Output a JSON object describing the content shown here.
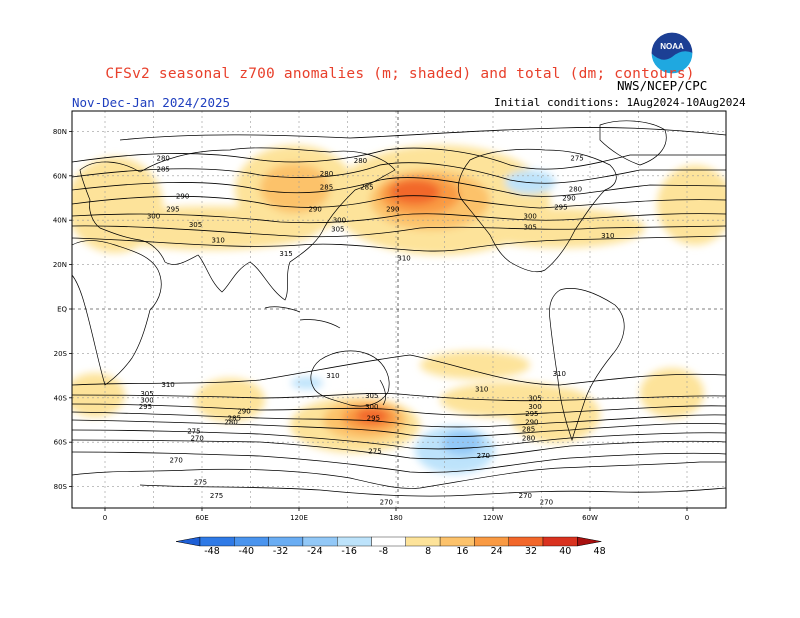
{
  "title": "CFSv2 seasonal z700 anomalies (m; shaded) and total (dm; contours)",
  "agency": "NWS/NCEP/CPC",
  "period": "Nov-Dec-Jan 2024/2025",
  "initial_conditions": "Initial conditions:  1Aug2024-10Aug2024",
  "logo_text": "NOAA",
  "lat_labels": [
    "80N",
    "60N",
    "40N",
    "20N",
    "EQ",
    "20S",
    "40S",
    "60S",
    "80S"
  ],
  "lon_labels": [
    "0",
    "60E",
    "120E",
    "180",
    "120W",
    "60W",
    "0"
  ],
  "colorbar": {
    "labels": [
      "-48",
      "-40",
      "-32",
      "-24",
      "-16",
      "-8",
      "8",
      "16",
      "24",
      "32",
      "40",
      "48"
    ],
    "colors": [
      "#1e5fd6",
      "#2f7ae6",
      "#4a94ee",
      "#6aadf3",
      "#92c8f7",
      "#bde3fb",
      "#ffffff",
      "#fde39a",
      "#fcc26b",
      "#f99a43",
      "#f2672a",
      "#d9321f",
      "#a8100f"
    ]
  },
  "contour_labels": [
    {
      "t": "280",
      "lon": 36,
      "lat": 68
    },
    {
      "t": "285",
      "lon": 36,
      "lat": 63
    },
    {
      "t": "290",
      "lon": 48,
      "lat": 51
    },
    {
      "t": "295",
      "lon": 42,
      "lat": 45
    },
    {
      "t": "300",
      "lon": 30,
      "lat": 42
    },
    {
      "t": "305",
      "lon": 56,
      "lat": 38
    },
    {
      "t": "310",
      "lon": 70,
      "lat": 31
    },
    {
      "t": "315",
      "lon": 112,
      "lat": 25
    },
    {
      "t": "280",
      "lon": 137,
      "lat": 61
    },
    {
      "t": "285",
      "lon": 137,
      "lat": 55
    },
    {
      "t": "290",
      "lon": 130,
      "lat": 45
    },
    {
      "t": "300",
      "lon": 145,
      "lat": 40
    },
    {
      "t": "305",
      "lon": 144,
      "lat": 36
    },
    {
      "t": "280",
      "lon": 158,
      "lat": 67
    },
    {
      "t": "285",
      "lon": 162,
      "lat": 55
    },
    {
      "t": "290",
      "lon": 178,
      "lat": 45
    },
    {
      "t": "310",
      "lon": 185,
      "lat": 23
    },
    {
      "t": "275",
      "lon": 292,
      "lat": 68
    },
    {
      "t": "280",
      "lon": 291,
      "lat": 54
    },
    {
      "t": "290",
      "lon": 287,
      "lat": 50
    },
    {
      "t": "295",
      "lon": 282,
      "lat": 46
    },
    {
      "t": "300",
      "lon": 263,
      "lat": 42
    },
    {
      "t": "305",
      "lon": 263,
      "lat": 37
    },
    {
      "t": "310",
      "lon": 311,
      "lat": 33
    },
    {
      "t": "310",
      "lon": 39,
      "lat": -34
    },
    {
      "t": "305",
      "lon": 26,
      "lat": -38
    },
    {
      "t": "300",
      "lon": 26,
      "lat": -41
    },
    {
      "t": "295",
      "lon": 25,
      "lat": -44
    },
    {
      "t": "290",
      "lon": 86,
      "lat": -46
    },
    {
      "t": "285",
      "lon": 80,
      "lat": -49
    },
    {
      "t": "280",
      "lon": 78,
      "lat": -51
    },
    {
      "t": "275",
      "lon": 55,
      "lat": -55
    },
    {
      "t": "270",
      "lon": 57,
      "lat": -58
    },
    {
      "t": "270",
      "lon": 44,
      "lat": -68
    },
    {
      "t": "275",
      "lon": 59,
      "lat": -78
    },
    {
      "t": "275",
      "lon": 69,
      "lat": -84
    },
    {
      "t": "310",
      "lon": 141,
      "lat": -30
    },
    {
      "t": "305",
      "lon": 165,
      "lat": -39
    },
    {
      "t": "300",
      "lon": 165,
      "lat": -44
    },
    {
      "t": "295",
      "lon": 166,
      "lat": -49
    },
    {
      "t": "275",
      "lon": 167,
      "lat": -64
    },
    {
      "t": "270",
      "lon": 174,
      "lat": -87
    },
    {
      "t": "270",
      "lon": 234,
      "lat": -66
    },
    {
      "t": "270",
      "lon": 260,
      "lat": -84
    },
    {
      "t": "270",
      "lon": 273,
      "lat": -87
    },
    {
      "t": "310",
      "lon": 233,
      "lat": -36
    },
    {
      "t": "310",
      "lon": 281,
      "lat": -29
    },
    {
      "t": "305",
      "lon": 266,
      "lat": -40
    },
    {
      "t": "300",
      "lon": 266,
      "lat": -44
    },
    {
      "t": "295",
      "lon": 264,
      "lat": -47
    },
    {
      "t": "290",
      "lon": 264,
      "lat": -51
    },
    {
      "t": "285",
      "lon": 262,
      "lat": -54
    },
    {
      "t": "280",
      "lon": 262,
      "lat": -58
    }
  ]
}
